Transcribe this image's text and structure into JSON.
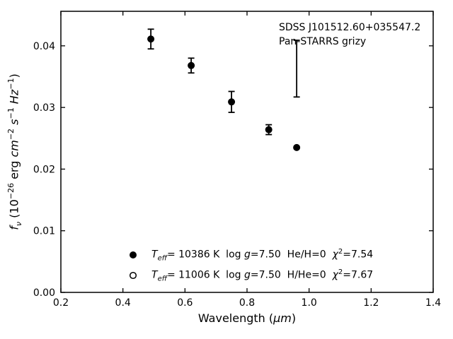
{
  "figure": {
    "background": "#ffffff",
    "foreground": "#000000"
  },
  "chart_data": {
    "type": "scatter",
    "title": "",
    "xlabel": "Wavelength (μm)",
    "ylabel": "fν (10−26 erg cm−2 s−1 Hz−1)",
    "xlabel_parts": {
      "pre": "Wavelength (",
      "mu": "μm",
      "post": ")"
    },
    "ylabel_parts": {
      "f": "f",
      "nu": "ν",
      "p1": " (10",
      "e1": "−26",
      "p2": " erg ",
      "cm": "cm",
      "e2": "−2",
      "sp1": " ",
      "s": "s",
      "e3": "−1",
      "sp2": " ",
      "hz": "Hz",
      "e4": "−1",
      "p3": ")"
    },
    "xlim": [
      0.2,
      1.4
    ],
    "ylim": [
      0,
      0.0456
    ],
    "xticks": [
      "0.2",
      "0.4",
      "0.6",
      "0.8",
      "1.0",
      "1.2",
      "1.4"
    ],
    "yticks": [
      "0.00",
      "0.01",
      "0.02",
      "0.03",
      "0.04"
    ],
    "grid": false,
    "tick_direction": "in",
    "marker_color": "#000000",
    "points": [
      {
        "x": 0.49,
        "y": 0.0411,
        "yerr": 0.0016
      },
      {
        "x": 0.62,
        "y": 0.0368,
        "yerr": 0.0012
      },
      {
        "x": 0.75,
        "y": 0.0309,
        "yerr": 0.0017
      },
      {
        "x": 0.87,
        "y": 0.0264,
        "yerr": 0.0008
      },
      {
        "x": 0.96,
        "y": 0.0235,
        "yerr": 0
      }
    ],
    "error_only_points": [
      {
        "x": 0.96,
        "y": 0.0363,
        "yerr": 0.0046
      }
    ],
    "annotation": {
      "line1": "SDSS J101512.60+035547.2",
      "line2": "Pan-STARRS grizy",
      "position": "top right"
    },
    "legend_position": "lower center",
    "legend": [
      {
        "marker": "filled",
        "t": "T",
        "t_sub": "eff",
        "mid1": "= 10386 K  log ",
        "g": "g",
        "mid2": "=7.50  He/H=0  ",
        "chi": "χ",
        "chi_sup": "2",
        "tail": "=7.54"
      },
      {
        "marker": "open",
        "t": "T",
        "t_sub": "eff",
        "mid1": "= 11006 K  log ",
        "g": "g",
        "mid2": "=7.50  H/He=0  ",
        "chi": "χ",
        "chi_sup": "2",
        "tail": "=7.67"
      }
    ]
  }
}
